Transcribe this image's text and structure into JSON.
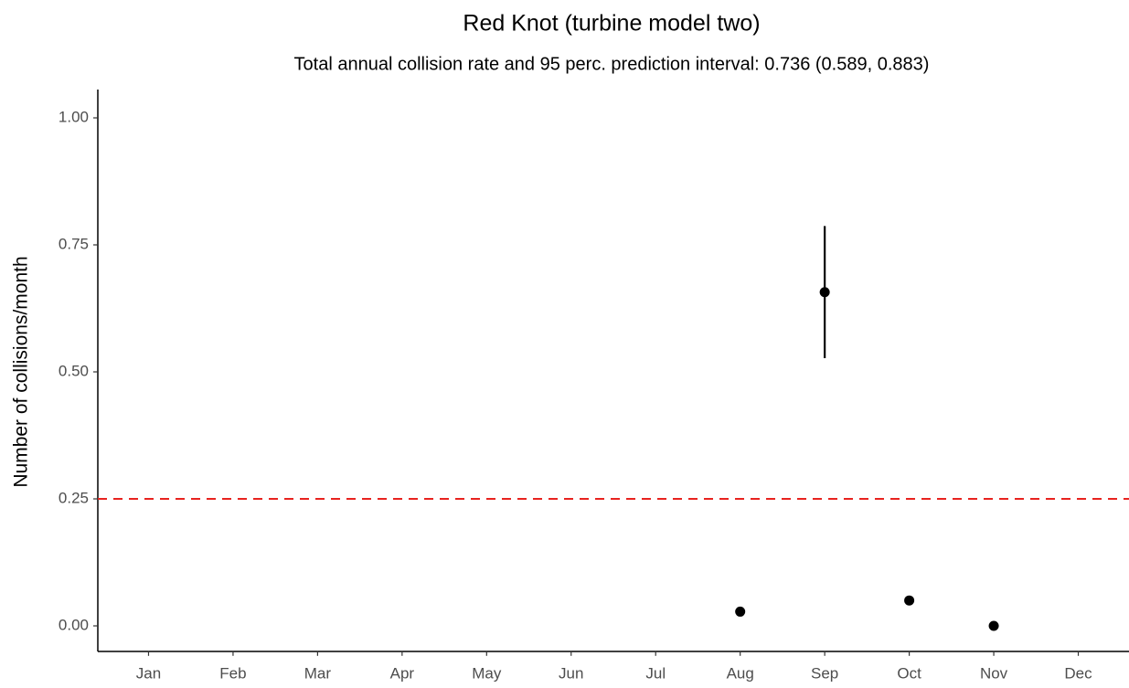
{
  "chart_data": {
    "type": "point",
    "title": "Red Knot (turbine model two)",
    "subtitle": "Total annual collision rate and 95 perc. prediction interval: 0.736 (0.589, 0.883)",
    "y_label": "Number of collisions/month",
    "categories": [
      "Jan",
      "Feb",
      "Mar",
      "Apr",
      "May",
      "Jun",
      "Jul",
      "Aug",
      "Sep",
      "Oct",
      "Nov",
      "Dec"
    ],
    "values": [
      null,
      null,
      null,
      null,
      null,
      null,
      null,
      0.028,
      0.657,
      0.05,
      0.0,
      null
    ],
    "lower": [
      null,
      null,
      null,
      null,
      null,
      null,
      null,
      null,
      0.527,
      null,
      null,
      null
    ],
    "upper": [
      null,
      null,
      null,
      null,
      null,
      null,
      null,
      null,
      0.787,
      null,
      null,
      null
    ],
    "color": "#000000",
    "ylim": [
      -0.05,
      1.05
    ],
    "yticks": [
      {
        "value": 0,
        "label": "0.00"
      },
      {
        "value": 0.25,
        "label": "0.25"
      },
      {
        "value": 0.5,
        "label": "0.50"
      },
      {
        "value": 0.75,
        "label": "0.75"
      },
      {
        "value": 1,
        "label": "1.00"
      }
    ],
    "reference_line": {
      "value": 0.25,
      "color": "#e8231f"
    },
    "grid": false
  }
}
